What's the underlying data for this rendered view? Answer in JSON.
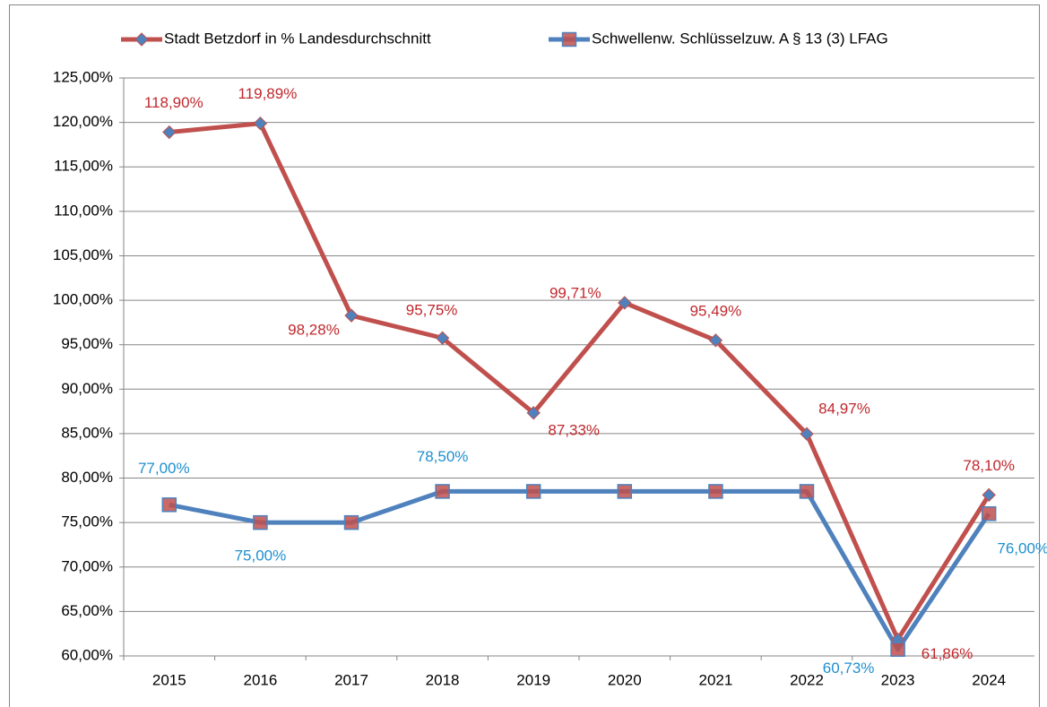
{
  "chart_data": {
    "type": "line",
    "categories": [
      "2015",
      "2016",
      "2017",
      "2018",
      "2019",
      "2020",
      "2021",
      "2022",
      "2023",
      "2024"
    ],
    "series": [
      {
        "name": "Stadt Betzdorf in % Landesdurchschnitt",
        "color": "#c0504d",
        "marker": "diamond",
        "marker_color": "#4f81bd",
        "values": [
          118.9,
          119.89,
          98.28,
          95.75,
          87.33,
          99.71,
          95.49,
          84.97,
          61.86,
          78.1
        ],
        "value_labels": [
          "118,90%",
          "119,89%",
          "98,28%",
          "95,75%",
          "87,33%",
          "99,71%",
          "95,49%",
          "84,97%",
          "61,86%",
          "78,10%"
        ],
        "label_color": "#c0282d"
      },
      {
        "name": "Schwellenw. Schlüsselzuw. A § 13 (3) LFAG",
        "color": "#4f81bd",
        "marker": "square",
        "marker_color": "#c0504d",
        "values": [
          77.0,
          75.0,
          75.0,
          78.5,
          78.5,
          78.5,
          78.5,
          78.5,
          60.73,
          76.0
        ],
        "value_labels": [
          "77,00%",
          "75,00%",
          null,
          "78,50%",
          null,
          null,
          null,
          null,
          "60,73%",
          "76,00%"
        ],
        "label_color": "#1f8fcf"
      }
    ],
    "ylim": [
      60,
      125
    ],
    "yticks": [
      {
        "value": 60,
        "label": "60,00%"
      },
      {
        "value": 65,
        "label": "65,00%"
      },
      {
        "value": 70,
        "label": "70,00%"
      },
      {
        "value": 75,
        "label": "75,00%"
      },
      {
        "value": 80,
        "label": "80,00%"
      },
      {
        "value": 85,
        "label": "85,00%"
      },
      {
        "value": 90,
        "label": "90,00%"
      },
      {
        "value": 95,
        "label": "95,00%"
      },
      {
        "value": 100,
        "label": "100,00%"
      },
      {
        "value": 105,
        "label": "105,00%"
      },
      {
        "value": 110,
        "label": "110,00%"
      },
      {
        "value": 115,
        "label": "115,00%"
      },
      {
        "value": 120,
        "label": "120,00%"
      },
      {
        "value": 125,
        "label": "125,00%"
      }
    ],
    "grid": true,
    "legend": "top"
  }
}
